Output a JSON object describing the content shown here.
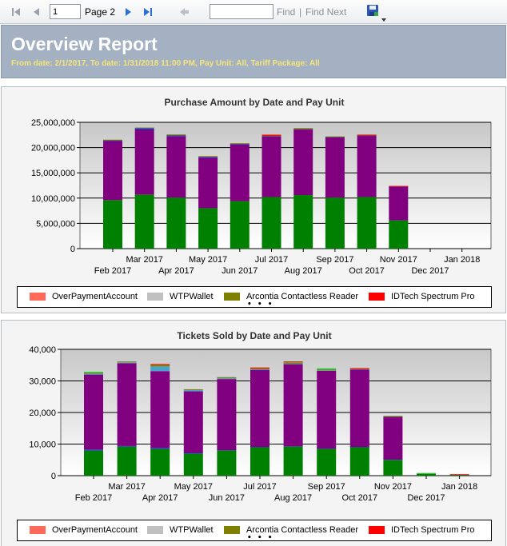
{
  "toolbar": {
    "page_number": "1",
    "page_label": "Page 2",
    "find_label": "Find",
    "separator": "|",
    "find_next_label": "Find Next",
    "icons": [
      "first-page-icon",
      "previous-page-icon",
      "next-page-icon",
      "last-page-icon",
      "back-icon",
      "export-save-icon",
      "dropdown-arrow-icon"
    ]
  },
  "header": {
    "title": "Overview Report",
    "subtitle": "From date: 2/1/2017, To date: 1/31/2018 11:00 PM, Pay Unit: All, Tariff Package: All"
  },
  "colors": {
    "green": "#008000",
    "purple": "#800080",
    "blue": "#1f2bd6",
    "teal": "#4aa3c8",
    "olive": "#808000",
    "red": "#ff0000",
    "salmon": "#ff6a5a",
    "gray": "#c0c0c0",
    "lime": "#32cd32"
  },
  "chart_data": [
    {
      "type": "bar",
      "stacked": true,
      "title": "Purchase Amount by Date and Pay Unit",
      "categories": [
        "Feb 2017",
        "Mar 2017",
        "Apr 2017",
        "May 2017",
        "Jun 2017",
        "Jul 2017",
        "Aug 2017",
        "Sep 2017",
        "Oct 2017",
        "Nov 2017",
        "Dec 2017",
        "Jan 2018"
      ],
      "series": [
        {
          "color": "green",
          "values": [
            9600000,
            10700000,
            10100000,
            8000000,
            9400000,
            10200000,
            10600000,
            10100000,
            10200000,
            5600000,
            0,
            0
          ]
        },
        {
          "color": "purple",
          "values": [
            11700000,
            12800000,
            12100000,
            10000000,
            11200000,
            12000000,
            13000000,
            11900000,
            12100000,
            6600000,
            0,
            0
          ]
        },
        {
          "color": "blue",
          "values": [
            100000,
            300000,
            200000,
            150000,
            100000,
            50000,
            50000,
            50000,
            50000,
            50000,
            0,
            0
          ]
        },
        {
          "color": "olive",
          "values": [
            50000,
            50000,
            200000,
            50000,
            100000,
            100000,
            200000,
            50000,
            50000,
            0,
            0,
            0
          ]
        },
        {
          "color": "red",
          "values": [
            0,
            0,
            0,
            0,
            0,
            200000,
            0,
            0,
            100000,
            50000,
            0,
            0
          ]
        }
      ],
      "ylim": [
        0,
        25000000
      ],
      "yticks": [
        "0",
        "5,000,000",
        "10,000,000",
        "15,000,000",
        "20,000,000",
        "25,000,000"
      ],
      "grid": true,
      "legend": [
        {
          "label": "OverPaymentAccount",
          "color": "salmon"
        },
        {
          "label": "WTPWallet",
          "color": "gray"
        },
        {
          "label": "Arcontia Contactless Reader",
          "color": "olive"
        },
        {
          "label": "IDTech Spectrum Pro",
          "color": "red"
        }
      ],
      "legend_more": "• • •"
    },
    {
      "type": "bar",
      "stacked": true,
      "title": "Tickets Sold by Date and Pay Unit",
      "categories": [
        "Feb 2017",
        "Mar 2017",
        "Apr 2017",
        "May 2017",
        "Jun 2017",
        "Jul 2017",
        "Aug 2017",
        "Sep 2017",
        "Oct 2017",
        "Nov 2017",
        "Dec 2017",
        "Jan 2018"
      ],
      "series": [
        {
          "color": "green",
          "values": [
            8000,
            9200,
            8500,
            7000,
            8000,
            9000,
            9200,
            8500,
            9000,
            5000,
            600,
            200
          ]
        },
        {
          "color": "blue",
          "values": [
            300,
            200,
            300,
            200,
            100,
            100,
            100,
            100,
            100,
            100,
            0,
            0
          ]
        },
        {
          "color": "purple",
          "values": [
            23700,
            26200,
            24300,
            19500,
            22500,
            24400,
            26000,
            24600,
            24500,
            13500,
            0,
            0
          ]
        },
        {
          "color": "teal",
          "values": [
            300,
            300,
            1500,
            400,
            300,
            200,
            200,
            200,
            100,
            100,
            0,
            0
          ]
        },
        {
          "color": "olive",
          "values": [
            200,
            100,
            500,
            200,
            300,
            300,
            200,
            200,
            100,
            100,
            0,
            0
          ]
        },
        {
          "color": "lime",
          "values": [
            400,
            0,
            0,
            0,
            0,
            0,
            200,
            400,
            0,
            0,
            100,
            0
          ]
        },
        {
          "color": "red",
          "values": [
            0,
            0,
            100,
            0,
            0,
            200,
            100,
            0,
            200,
            0,
            0,
            100
          ]
        }
      ],
      "ylim": [
        0,
        40000
      ],
      "yticks": [
        "0",
        "10,000",
        "20,000",
        "30,000",
        "40,000"
      ],
      "grid": true,
      "legend": [
        {
          "label": "OverPaymentAccount",
          "color": "salmon"
        },
        {
          "label": "WTPWallet",
          "color": "gray"
        },
        {
          "label": "Arcontia Contactless Reader",
          "color": "olive"
        },
        {
          "label": "IDTech Spectrum Pro",
          "color": "red"
        }
      ],
      "legend_more": "• • •"
    }
  ]
}
